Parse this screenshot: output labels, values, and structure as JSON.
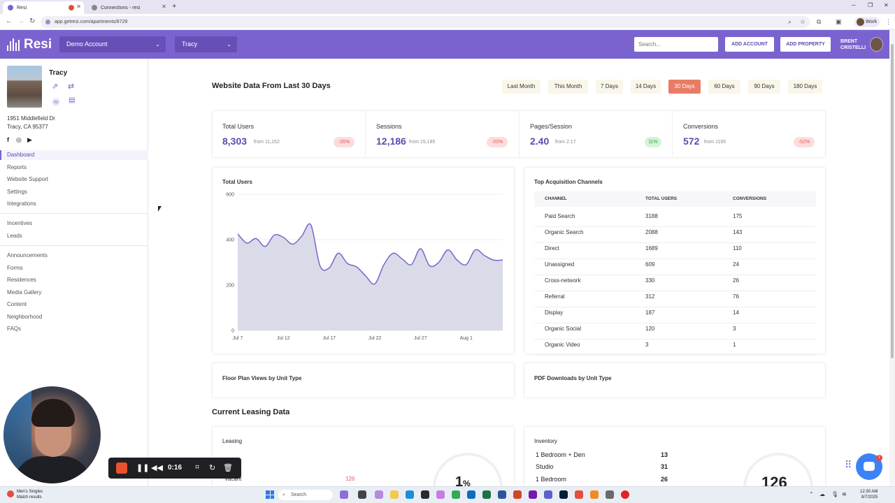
{
  "browser": {
    "tabs": [
      {
        "title": "Resi",
        "active": true
      },
      {
        "title": "Connections - resi",
        "active": false
      }
    ],
    "url": "app.getresi.com/apartments/8729",
    "profile_label": "Work"
  },
  "header": {
    "logo_text": "Resi",
    "account_dropdown": "Demo Account",
    "property_dropdown": "Tracy",
    "search_placeholder": "Search...",
    "add_account_label": "ADD ACCOUNT",
    "add_property_label": "ADD PROPERTY",
    "user_first": "BRENT",
    "user_last": "CRISTELLI",
    "brand_color": "#7b63cf"
  },
  "sidebar": {
    "property_name": "Tracy",
    "address_line1": "1951 Middlefield Dr",
    "address_line2": "Tracy, CA 95377",
    "nav_group1": [
      {
        "label": "Dashboard",
        "active": true
      },
      {
        "label": "Reports"
      },
      {
        "label": "Website Support"
      },
      {
        "label": "Settings"
      },
      {
        "label": "Integrations"
      }
    ],
    "nav_group2": [
      {
        "label": "Incentives"
      },
      {
        "label": "Leads"
      }
    ],
    "nav_group3": [
      {
        "label": "Announcements"
      },
      {
        "label": "Forms"
      },
      {
        "label": "Residences"
      },
      {
        "label": "Media Gallery"
      },
      {
        "label": "Content"
      },
      {
        "label": "Neighborhood"
      },
      {
        "label": "FAQs"
      }
    ]
  },
  "main": {
    "website_title": "Website Data From Last 30 Days",
    "ranges": [
      {
        "label": "Last Month"
      },
      {
        "label": "This Month"
      },
      {
        "label": "7 Days"
      },
      {
        "label": "14 Days"
      },
      {
        "label": "30 Days",
        "active": true
      },
      {
        "label": "60 Days"
      },
      {
        "label": "90 Days"
      },
      {
        "label": "180 Days"
      }
    ],
    "stats": [
      {
        "label": "Total Users",
        "value": "8,303",
        "from": "from 11,152",
        "change": "-26%",
        "trend": "down"
      },
      {
        "label": "Sessions",
        "value": "12,186",
        "from": "from 15,185",
        "change": "-20%",
        "trend": "down"
      },
      {
        "label": "Pages/Session",
        "value": "2.40",
        "from": "from 2.17",
        "change": "11%",
        "trend": "up"
      },
      {
        "label": "Conversions",
        "value": "572",
        "from": "from 1195",
        "change": "-52%",
        "trend": "down"
      }
    ],
    "users_chart_title": "Total Users",
    "channels": {
      "title": "Top Acquisition Channels",
      "headers": [
        "CHANNEL",
        "TOTAL USERS",
        "CONVERSIONS"
      ],
      "rows": [
        [
          "Paid Search",
          "3188",
          "175"
        ],
        [
          "Organic Search",
          "2088",
          "143"
        ],
        [
          "Direct",
          "1689",
          "110"
        ],
        [
          "Unassigned",
          "609",
          "24"
        ],
        [
          "Cross-network",
          "330",
          "26"
        ],
        [
          "Referral",
          "312",
          "76"
        ],
        [
          "Display",
          "187",
          "14"
        ],
        [
          "Organic Social",
          "120",
          "3"
        ],
        [
          "Organic Video",
          "3",
          "1"
        ]
      ]
    },
    "floorplan_title": "Floor Plan Views by Unit Type",
    "pdf_title": "PDF Downloads by Unit Type",
    "leasing_section_title": "Current Leasing Data",
    "leasing": {
      "title": "Leasing",
      "vacant_label": "Vacant",
      "vacant_value": "126",
      "gauge_value": "1",
      "gauge_unit": "%"
    },
    "inventory": {
      "title": "Inventory",
      "rows": [
        [
          "1 Bedroom + Den",
          "13"
        ],
        [
          "Studio",
          "31"
        ],
        [
          "1 Bedroom",
          "26"
        ]
      ],
      "gauge_value": "126"
    }
  },
  "chart_data": {
    "type": "area",
    "title": "Total Users",
    "x": [
      "Jul 7",
      "Jul 8",
      "Jul 9",
      "Jul 10",
      "Jul 11",
      "Jul 12",
      "Jul 13",
      "Jul 14",
      "Jul 15",
      "Jul 16",
      "Jul 17",
      "Jul 18",
      "Jul 19",
      "Jul 20",
      "Jul 21",
      "Jul 22",
      "Jul 23",
      "Jul 24",
      "Jul 25",
      "Jul 26",
      "Jul 27",
      "Jul 28",
      "Jul 29",
      "Jul 30",
      "Jul 31",
      "Aug 1",
      "Aug 2",
      "Aug 3",
      "Aug 4",
      "Aug 5"
    ],
    "y": [
      425,
      385,
      405,
      370,
      420,
      410,
      380,
      415,
      465,
      285,
      275,
      340,
      295,
      280,
      240,
      205,
      290,
      340,
      315,
      290,
      360,
      285,
      300,
      355,
      310,
      290,
      355,
      330,
      310,
      310
    ],
    "xticks": [
      "Jul 7",
      "Jul 12",
      "Jul 17",
      "Jul 22",
      "Jul 27",
      "Aug 1"
    ],
    "yticks": [
      "0",
      "200",
      "400",
      "600"
    ],
    "ylim": [
      0,
      600
    ],
    "line_color": "#7b63cf",
    "fill_color": "#dadbe8"
  },
  "recorder": {
    "time": "0:16"
  },
  "taskbar": {
    "weather_title": "Men's Singles",
    "weather_sub": "Match results",
    "search_label": "Search",
    "time": "12:30 AM",
    "date": "8/7/2025"
  }
}
